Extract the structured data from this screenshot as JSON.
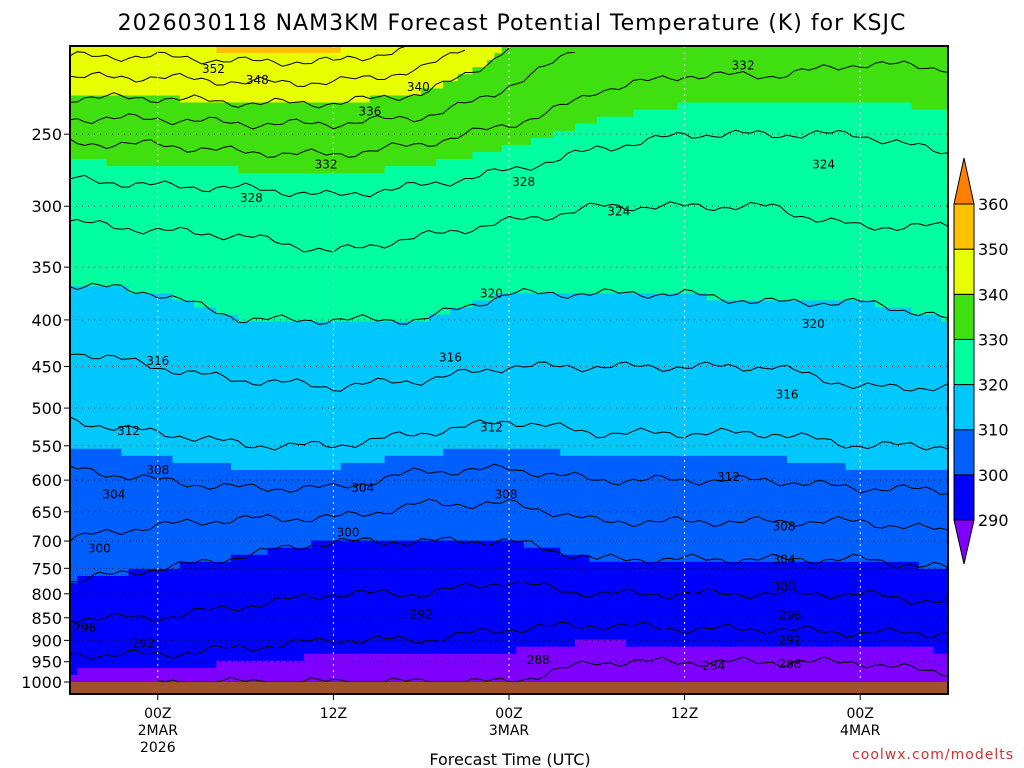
{
  "chart_data": {
    "type": "heatmap",
    "title": "2026030118 NAM3KM Forecast Potential Temperature (K) for KSJC",
    "xlabel": "Forecast Time (UTC)",
    "ylabel": "",
    "x_unit": "forecast hour",
    "x_range": [
      0,
      60
    ],
    "x_ticks": [
      {
        "hour": 6,
        "lines": [
          "00Z",
          "2MAR",
          "2026"
        ]
      },
      {
        "hour": 18,
        "lines": [
          "12Z"
        ]
      },
      {
        "hour": 30,
        "lines": [
          "00Z",
          "3MAR"
        ]
      },
      {
        "hour": 42,
        "lines": [
          "12Z"
        ]
      },
      {
        "hour": 54,
        "lines": [
          "00Z",
          "4MAR"
        ]
      }
    ],
    "y_unit": "hPa",
    "y_range": [
      1000,
      200
    ],
    "y_scale": "log",
    "y_ticks": [
      250,
      300,
      350,
      400,
      450,
      500,
      550,
      600,
      650,
      700,
      750,
      800,
      850,
      900,
      950,
      1000
    ],
    "colorbar": {
      "levels": [
        290,
        300,
        310,
        320,
        330,
        340,
        350,
        360
      ],
      "colors": [
        "#7f00ff",
        "#0000ff",
        "#0060ff",
        "#00c8ff",
        "#00ffa0",
        "#40e010",
        "#e8ff00",
        "#ffc000",
        "#ff8000"
      ]
    },
    "contour_interval": 4,
    "profiles": {
      "hours": [
        0,
        6,
        12,
        18,
        24,
        30,
        36,
        42,
        48,
        54,
        60
      ],
      "levels_hpa": [
        1000,
        950,
        900,
        850,
        800,
        750,
        700,
        650,
        600,
        550,
        500,
        450,
        400,
        350,
        300,
        250,
        200
      ],
      "theta_k": [
        [
          289,
          291,
          294,
          296,
          299,
          301,
          304,
          305,
          307,
          310,
          313,
          315,
          318,
          321,
          325,
          333,
          350
        ],
        [
          288,
          291,
          294,
          296,
          298,
          300,
          303,
          305,
          308,
          311,
          314,
          316,
          319,
          321,
          326,
          333,
          350
        ],
        [
          288,
          290,
          293,
          295,
          297,
          299,
          301,
          305,
          309,
          312,
          314,
          317,
          320,
          322,
          326,
          334,
          351
        ],
        [
          288,
          289,
          292,
          294,
          296,
          298,
          300,
          305,
          309,
          312,
          315,
          317,
          320,
          323,
          327,
          334,
          351
        ],
        [
          288,
          289,
          292,
          294,
          296,
          298,
          300,
          303,
          307,
          311,
          314,
          317,
          320,
          322,
          326,
          333,
          348
        ],
        [
          288,
          289,
          291,
          293,
          295,
          297,
          300,
          303,
          307,
          310,
          313,
          316,
          319,
          321,
          325,
          331,
          340
        ],
        [
          287,
          288,
          290,
          293,
          296,
          299,
          302,
          305,
          308,
          311,
          314,
          316,
          319,
          321,
          324,
          329,
          335
        ],
        [
          287,
          288,
          291,
          293,
          296,
          299,
          302,
          305,
          308,
          311,
          314,
          316,
          319,
          321,
          324,
          328,
          334
        ],
        [
          287,
          288,
          291,
          293,
          296,
          299,
          302,
          305,
          308,
          311,
          314,
          316,
          319,
          322,
          324,
          328,
          334
        ],
        [
          287,
          288,
          291,
          294,
          296,
          299,
          302,
          305,
          309,
          312,
          315,
          317,
          319,
          322,
          325,
          328,
          333
        ],
        [
          287,
          289,
          291,
          294,
          297,
          300,
          303,
          306,
          309,
          312,
          315,
          317,
          320,
          322,
          325,
          329,
          333
        ]
      ]
    },
    "contour_labels": [
      {
        "value": "352",
        "hour": 9.8,
        "hpa": 212
      },
      {
        "value": "348",
        "hour": 12.8,
        "hpa": 218
      },
      {
        "value": "340",
        "hour": 23.8,
        "hpa": 222
      },
      {
        "value": "336",
        "hour": 20.5,
        "hpa": 236
      },
      {
        "value": "332",
        "hour": 17.5,
        "hpa": 270
      },
      {
        "value": "332",
        "hour": 46.0,
        "hpa": 210
      },
      {
        "value": "328",
        "hour": 12.4,
        "hpa": 294
      },
      {
        "value": "328",
        "hour": 31.0,
        "hpa": 282
      },
      {
        "value": "324",
        "hour": 37.5,
        "hpa": 304
      },
      {
        "value": "324",
        "hour": 51.5,
        "hpa": 270
      },
      {
        "value": "320",
        "hour": 28.8,
        "hpa": 374
      },
      {
        "value": "320",
        "hour": 50.8,
        "hpa": 404
      },
      {
        "value": "316",
        "hour": 6.0,
        "hpa": 444
      },
      {
        "value": "316",
        "hour": 26.0,
        "hpa": 440
      },
      {
        "value": "316",
        "hour": 49.0,
        "hpa": 483
      },
      {
        "value": "312",
        "hour": 4.0,
        "hpa": 530
      },
      {
        "value": "312",
        "hour": 28.8,
        "hpa": 525
      },
      {
        "value": "312",
        "hour": 45.0,
        "hpa": 595
      },
      {
        "value": "308",
        "hour": 6.0,
        "hpa": 585
      },
      {
        "value": "308",
        "hour": 29.8,
        "hpa": 622
      },
      {
        "value": "308",
        "hour": 48.8,
        "hpa": 675
      },
      {
        "value": "304",
        "hour": 3.0,
        "hpa": 622
      },
      {
        "value": "304",
        "hour": 20.0,
        "hpa": 612
      },
      {
        "value": "304",
        "hour": 48.8,
        "hpa": 733
      },
      {
        "value": "300",
        "hour": 2.0,
        "hpa": 713
      },
      {
        "value": "300",
        "hour": 19.0,
        "hpa": 685
      },
      {
        "value": "300",
        "hour": 48.8,
        "hpa": 785
      },
      {
        "value": "296",
        "hour": 1.0,
        "hpa": 872
      },
      {
        "value": "296",
        "hour": 49.2,
        "hpa": 845
      },
      {
        "value": "292",
        "hour": 5.0,
        "hpa": 907
      },
      {
        "value": "292",
        "hour": 24.0,
        "hpa": 843
      },
      {
        "value": "292",
        "hour": 49.2,
        "hpa": 900
      },
      {
        "value": "288",
        "hour": 32.0,
        "hpa": 946
      },
      {
        "value": "288",
        "hour": 49.2,
        "hpa": 955
      },
      {
        "value": "284",
        "hour": 44.0,
        "hpa": 960
      }
    ],
    "ground": {
      "color": "#a0522d",
      "from_hpa": 1000
    }
  },
  "credit": "coolwx.com/modelts"
}
